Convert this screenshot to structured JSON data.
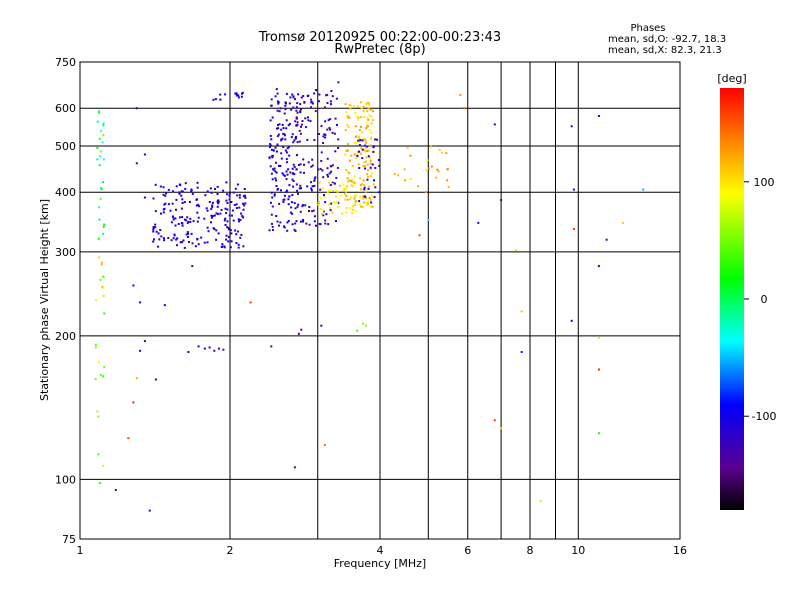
{
  "chart_data": {
    "type": "scatter",
    "title": "Tromsø 20120925 00:22:00-00:23:43",
    "subtitle": "RwPretec (8p)",
    "xlabel": "Frequency [MHz]",
    "ylabel": "Stationary phase Virtual Height [km]",
    "x_scale": "log",
    "y_scale": "log",
    "xlim": [
      1,
      16
    ],
    "ylim": [
      75,
      750
    ],
    "x_ticks": [
      1,
      2,
      4,
      6,
      8,
      10,
      16
    ],
    "y_ticks": [
      75,
      100,
      200,
      300,
      400,
      500,
      600,
      750
    ],
    "grid": true,
    "stats": {
      "heading": "Phases",
      "line_o": "mean, sd,O: -92.7, 18.3",
      "line_x": "mean, sd,X:  82.3, 21.3"
    },
    "colorbar": {
      "label": "[deg]",
      "ticks": [
        100,
        0,
        -100
      ],
      "range": [
        -180,
        180
      ],
      "colormap": "rainbow"
    },
    "point_groups": [
      {
        "f": [
          1.4,
          2.15
        ],
        "h": [
          305,
          420
        ],
        "phase": [
          -120,
          -95
        ],
        "count": 220
      },
      {
        "f": [
          1.85,
          2.15
        ],
        "h": [
          625,
          650
        ],
        "phase": [
          -110,
          -100
        ],
        "count": 14
      },
      {
        "f": [
          2.4,
          2.75
        ],
        "h": [
          330,
          660
        ],
        "phase": [
          -130,
          -95
        ],
        "count": 170
      },
      {
        "f": [
          2.7,
          3.3
        ],
        "h": [
          340,
          660
        ],
        "phase": [
          -155,
          -90
        ],
        "count": 150
      },
      {
        "f": [
          3.0,
          3.6
        ],
        "h": [
          360,
          420
        ],
        "phase": [
          85,
          110
        ],
        "count": 45
      },
      {
        "f": [
          3.4,
          3.9
        ],
        "h": [
          370,
          620
        ],
        "phase": [
          90,
          130
        ],
        "count": 160
      },
      {
        "f": [
          3.6,
          4.0
        ],
        "h": [
          375,
          520
        ],
        "phase": [
          -140,
          -100
        ],
        "count": 35
      },
      {
        "f": [
          4.2,
          5.5
        ],
        "h": [
          400,
          500
        ],
        "phase": [
          90,
          140
        ],
        "count": 25
      },
      {
        "f": [
          1.08,
          1.12
        ],
        "h": [
          300,
          600
        ],
        "phase": [
          -40,
          60
        ],
        "count": 25
      },
      {
        "f": [
          1.07,
          1.12
        ],
        "h": [
          90,
          300
        ],
        "phase": [
          20,
          120
        ],
        "count": 22
      }
    ],
    "points": [
      {
        "f": 1.73,
        "h": 190,
        "phase": -115
      },
      {
        "f": 1.78,
        "h": 188,
        "phase": -120
      },
      {
        "f": 1.82,
        "h": 189,
        "phase": -118
      },
      {
        "f": 1.86,
        "h": 186,
        "phase": -125
      },
      {
        "f": 1.9,
        "h": 188,
        "phase": -112
      },
      {
        "f": 1.94,
        "h": 187,
        "phase": -128
      },
      {
        "f": 1.65,
        "h": 185,
        "phase": -110
      },
      {
        "f": 2.42,
        "h": 190,
        "phase": -112
      },
      {
        "f": 2.75,
        "h": 202,
        "phase": -150
      },
      {
        "f": 2.78,
        "h": 206,
        "phase": -145
      },
      {
        "f": 3.05,
        "h": 210,
        "phase": -130
      },
      {
        "f": 3.7,
        "h": 212,
        "phase": 55
      },
      {
        "f": 3.75,
        "h": 210,
        "phase": 60
      },
      {
        "f": 3.6,
        "h": 205,
        "phase": 40
      },
      {
        "f": 2.7,
        "h": 106,
        "phase": -140
      },
      {
        "f": 3.1,
        "h": 118,
        "phase": 145
      },
      {
        "f": 1.18,
        "h": 95,
        "phase": -150
      },
      {
        "f": 1.38,
        "h": 86,
        "phase": -110
      },
      {
        "f": 1.25,
        "h": 122,
        "phase": 160
      },
      {
        "f": 1.28,
        "h": 145,
        "phase": 170
      },
      {
        "f": 1.3,
        "h": 163,
        "phase": 120
      },
      {
        "f": 1.42,
        "h": 162,
        "phase": -105
      },
      {
        "f": 1.32,
        "h": 186,
        "phase": -95
      },
      {
        "f": 1.35,
        "h": 195,
        "phase": -110
      },
      {
        "f": 1.28,
        "h": 255,
        "phase": -120
      },
      {
        "f": 1.32,
        "h": 235,
        "phase": -110
      },
      {
        "f": 1.48,
        "h": 232,
        "phase": -105
      },
      {
        "f": 1.68,
        "h": 280,
        "phase": -120
      },
      {
        "f": 2.2,
        "h": 235,
        "phase": 160
      },
      {
        "f": 1.3,
        "h": 600,
        "phase": -95
      },
      {
        "f": 1.3,
        "h": 460,
        "phase": -110
      },
      {
        "f": 1.35,
        "h": 480,
        "phase": -110
      },
      {
        "f": 1.35,
        "h": 390,
        "phase": -110
      },
      {
        "f": 4.8,
        "h": 325,
        "phase": 160
      },
      {
        "f": 5.0,
        "h": 350,
        "phase": -40
      },
      {
        "f": 6.3,
        "h": 345,
        "phase": -110
      },
      {
        "f": 6.8,
        "h": 555,
        "phase": -115
      },
      {
        "f": 7.0,
        "h": 385,
        "phase": -110
      },
      {
        "f": 6.8,
        "h": 133,
        "phase": 160
      },
      {
        "f": 7.0,
        "h": 128,
        "phase": 110
      },
      {
        "f": 7.5,
        "h": 302,
        "phase": 60
      },
      {
        "f": 7.7,
        "h": 225,
        "phase": 115
      },
      {
        "f": 7.7,
        "h": 185,
        "phase": -85
      },
      {
        "f": 8.4,
        "h": 90,
        "phase": 100
      },
      {
        "f": 9.7,
        "h": 550,
        "phase": -110
      },
      {
        "f": 9.8,
        "h": 405,
        "phase": -130
      },
      {
        "f": 9.8,
        "h": 335,
        "phase": 160
      },
      {
        "f": 9.7,
        "h": 215,
        "phase": -100
      },
      {
        "f": 11.0,
        "h": 578,
        "phase": -110
      },
      {
        "f": 11.0,
        "h": 280,
        "phase": -100
      },
      {
        "f": 11.0,
        "h": 198,
        "phase": 100
      },
      {
        "f": 11.0,
        "h": 170,
        "phase": 170
      },
      {
        "f": 11.0,
        "h": 125,
        "phase": 20
      },
      {
        "f": 11.4,
        "h": 318,
        "phase": -115
      },
      {
        "f": 12.3,
        "h": 345,
        "phase": 110
      },
      {
        "f": 13.5,
        "h": 405,
        "phase": -50
      },
      {
        "f": 5.8,
        "h": 640,
        "phase": 130
      },
      {
        "f": 5.9,
        "h": 600,
        "phase": 150
      },
      {
        "f": 3.3,
        "h": 680,
        "phase": -140
      },
      {
        "f": 3.8,
        "h": 610,
        "phase": 100
      }
    ]
  }
}
